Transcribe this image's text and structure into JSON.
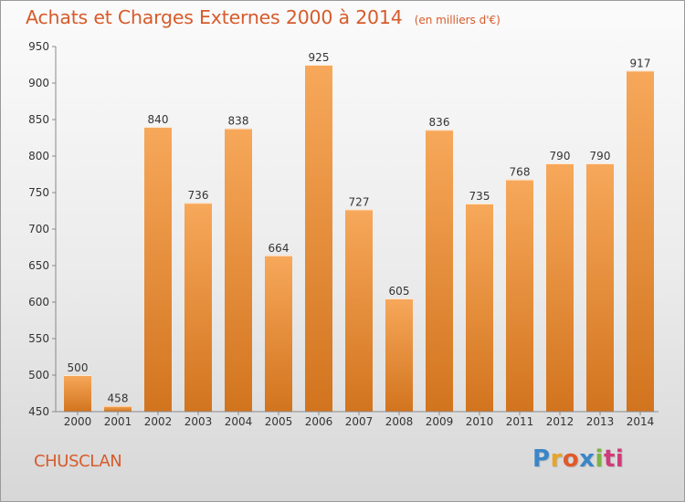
{
  "chart_data": {
    "type": "bar",
    "title": "Achats et Charges Externes 2000 à 2014",
    "subtitle": "(en milliers d'€)",
    "categories": [
      "2000",
      "2001",
      "2002",
      "2003",
      "2004",
      "2005",
      "2006",
      "2007",
      "2008",
      "2009",
      "2010",
      "2011",
      "2012",
      "2013",
      "2014"
    ],
    "values": [
      500,
      458,
      840,
      736,
      838,
      664,
      925,
      727,
      605,
      836,
      735,
      768,
      790,
      790,
      917
    ],
    "ylim": [
      450,
      950
    ],
    "yticks": [
      450,
      500,
      550,
      600,
      650,
      700,
      750,
      800,
      850,
      900,
      950
    ],
    "xlabel": "",
    "ylabel": "",
    "grid": false,
    "colors": {
      "bar_top": "#f7a85a",
      "bar_bottom": "#d2741e",
      "text": "#d75b2b"
    }
  },
  "footer": {
    "commune": "CHUSCLAN",
    "logo": [
      "P",
      "r",
      "o",
      "x",
      "i",
      "ti"
    ]
  }
}
